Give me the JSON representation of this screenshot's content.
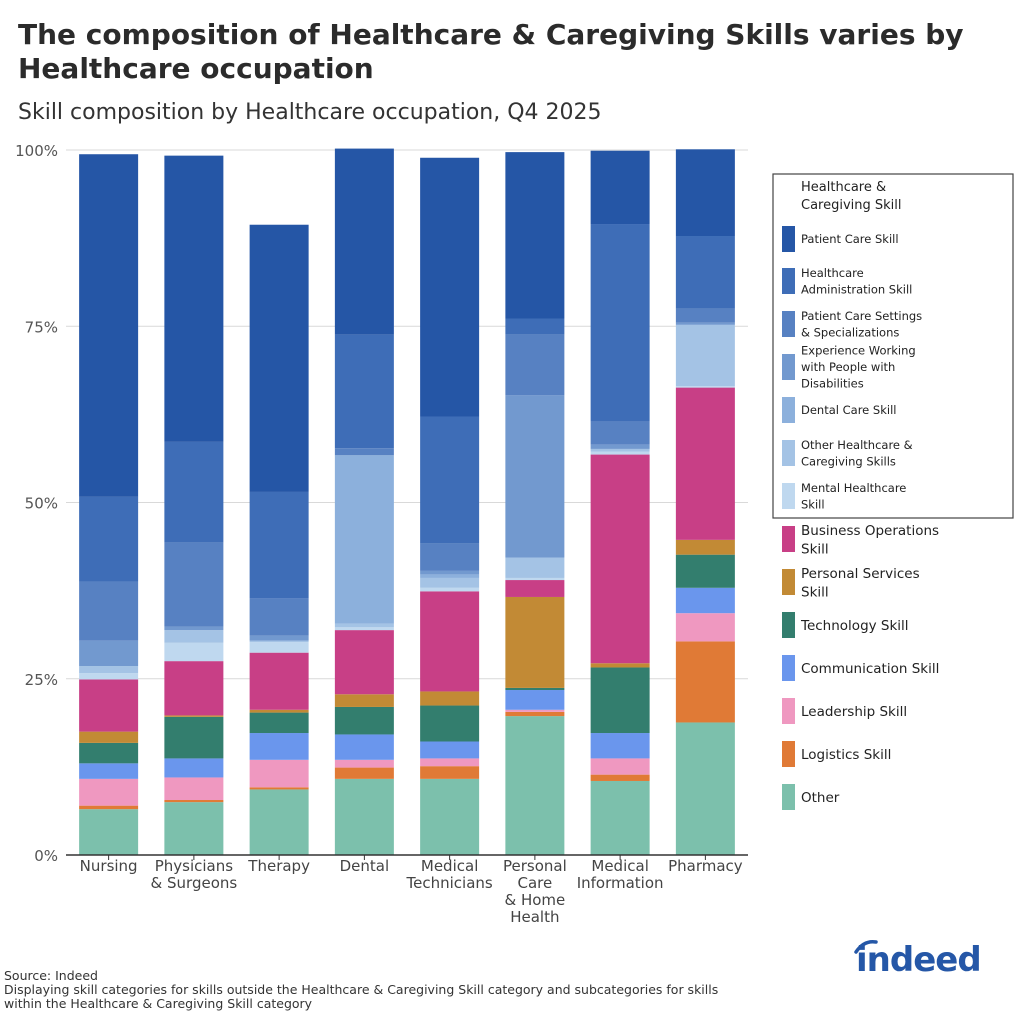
{
  "title": "The composition of Healthcare & Caregiving Skills varies by Healthcare occupation",
  "subtitle": "Skill composition by Healthcare occupation, Q4 2025",
  "footer": {
    "source": "Source: Indeed",
    "note1": "Displaying skill categories for skills outside the Healthcare & Caregiving Skill category and subcategories for skills",
    "note2": "within the Healthcare & Caregiving Skill category"
  },
  "logo": {
    "text": "indeed",
    "color": "#2557a7"
  },
  "chart_data": {
    "type": "bar",
    "stacked": true,
    "yticks": [
      "0%",
      "25%",
      "50%",
      "75%",
      "100%"
    ],
    "ytick_values": [
      0,
      25,
      50,
      75,
      100
    ],
    "ylim": [
      0,
      100
    ],
    "grid": true,
    "categories": [
      [
        "Nursing"
      ],
      [
        "Physicians",
        "& Surgeons"
      ],
      [
        "Therapy"
      ],
      [
        "Dental"
      ],
      [
        "Medical",
        "Technicians"
      ],
      [
        "Personal",
        "Care",
        "& Home",
        "Health"
      ],
      [
        "Medical",
        "Information"
      ],
      [
        "Pharmacy"
      ]
    ],
    "legend": {
      "placement": "right",
      "boxed_title": [
        "Healthcare &",
        "Caregiving Skill"
      ]
    },
    "series": [
      {
        "name": "Other",
        "color": "#7cc0ac",
        "group": "other",
        "values": [
          6.5,
          7.5,
          9.3,
          10.8,
          10.8,
          19.7,
          10.5,
          18.8
        ]
      },
      {
        "name": "Logistics Skill",
        "color": "#e07a36",
        "group": "other",
        "values": [
          0.5,
          0.3,
          0.3,
          1.6,
          1.8,
          0.6,
          0.9,
          11.5
        ]
      },
      {
        "name": "Leadership Skill",
        "color": "#ef98c0",
        "group": "other",
        "values": [
          3.8,
          3.2,
          3.9,
          1.1,
          1.1,
          0.3,
          2.3,
          4.0
        ]
      },
      {
        "name": "Communication Skill",
        "color": "#6a96ed",
        "group": "other",
        "values": [
          2.2,
          2.7,
          3.8,
          3.6,
          2.4,
          2.8,
          3.6,
          3.6
        ]
      },
      {
        "name": "Technology Skill",
        "color": "#337e6e",
        "group": "other",
        "values": [
          2.9,
          5.9,
          2.9,
          3.9,
          5.1,
          0.3,
          9.3,
          4.7
        ]
      },
      {
        "name": "Personal Services Skill",
        "color": "#c28a35",
        "group": "other",
        "values": [
          1.6,
          0.2,
          0.4,
          1.8,
          2.0,
          12.9,
          0.6,
          2.1
        ]
      },
      {
        "name": "Business Operations Skill",
        "color": "#c83f86",
        "group": "other",
        "values": [
          7.4,
          7.7,
          8.1,
          9.1,
          14.2,
          2.4,
          29.6,
          21.6
        ]
      },
      {
        "name": "Mental Healthcare Skill",
        "color": "#bfd8ef",
        "group": "healthcare",
        "values": [
          0.9,
          2.6,
          1.5,
          0.4,
          0.5,
          0.3,
          0.4,
          0.2
        ]
      },
      {
        "name": "Other Healthcare & Caregiving Skills",
        "color": "#a4c3e5",
        "group": "healthcare",
        "values": [
          1.0,
          1.8,
          0.2,
          0.5,
          1.4,
          2.9,
          0.4,
          8.7
        ]
      },
      {
        "name": "Dental Care Skill",
        "color": "#8cb0dc",
        "group": "healthcare",
        "values": [
          0.0,
          0.0,
          0.0,
          23.9,
          0.5,
          0.0,
          0.0,
          0.0
        ]
      },
      {
        "name": "Experience Working with People with Disabilities",
        "color": "#7299cf",
        "group": "healthcare",
        "values": [
          3.6,
          0.5,
          0.7,
          0.0,
          0.5,
          23.0,
          0.6,
          0.3
        ]
      },
      {
        "name": "Patient Care Settings & Specializations",
        "color": "#5781c2",
        "group": "healthcare",
        "values": [
          8.4,
          11.9,
          5.3,
          1.0,
          3.9,
          8.6,
          3.3,
          2.0
        ]
      },
      {
        "name": "Healthcare Administration Skill",
        "color": "#3e6db7",
        "group": "healthcare",
        "values": [
          12.0,
          14.3,
          15.1,
          16.1,
          18.0,
          2.3,
          28.0,
          10.3
        ]
      },
      {
        "name": "Patient Care Skill",
        "color": "#2556a6",
        "group": "healthcare",
        "values": [
          48.6,
          40.6,
          37.9,
          26.4,
          36.7,
          23.6,
          10.4,
          12.3
        ]
      }
    ]
  }
}
